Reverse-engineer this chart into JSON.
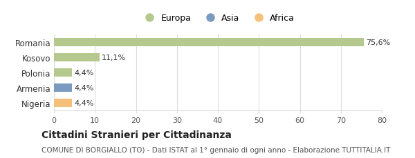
{
  "categories": [
    "Romania",
    "Kosovo",
    "Polonia",
    "Armenia",
    "Nigeria"
  ],
  "values": [
    75.6,
    11.1,
    4.4,
    4.4,
    4.4
  ],
  "labels": [
    "75,6%",
    "11,1%",
    "4,4%",
    "4,4%",
    "4,4%"
  ],
  "bar_colors": [
    "#b5c98e",
    "#b5c98e",
    "#b5c98e",
    "#7b9abf",
    "#f5c07a"
  ],
  "legend_items": [
    {
      "label": "Europa",
      "color": "#b5c98e"
    },
    {
      "label": "Asia",
      "color": "#7b9abf"
    },
    {
      "label": "Africa",
      "color": "#f5c07a"
    }
  ],
  "xlim": [
    0,
    80
  ],
  "xticks": [
    0,
    10,
    20,
    30,
    40,
    50,
    60,
    70,
    80
  ],
  "title": "Cittadini Stranieri per Cittadinanza",
  "subtitle": "COMUNE DI BORGIALLO (TO) - Dati ISTAT al 1° gennaio di ogni anno - Elaborazione TUTTITALIA.IT",
  "background_color": "#ffffff",
  "grid_color": "#dddddd",
  "bar_height": 0.55
}
